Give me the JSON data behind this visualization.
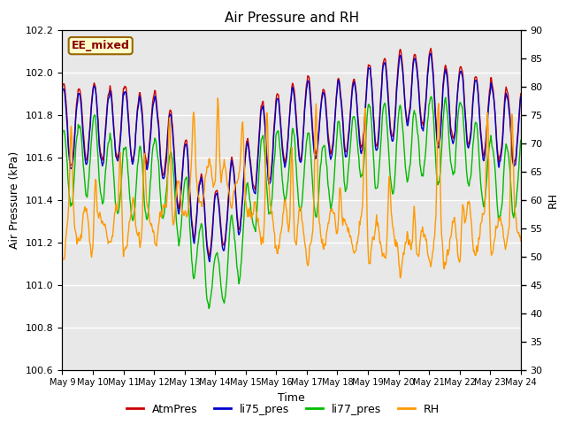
{
  "title": "Air Pressure and RH",
  "xlabel": "Time",
  "ylabel_left": "Air Pressure (kPa)",
  "ylabel_right": "RH",
  "annotation": "EE_mixed",
  "ylim_left": [
    100.6,
    102.2
  ],
  "ylim_right": [
    30,
    90
  ],
  "xtick_labels": [
    "May 9",
    "May 10",
    "May 11",
    "May 12",
    "May 13",
    "May 14",
    "May 15",
    "May 16",
    "May 17",
    "May 18",
    "May 19",
    "May 20",
    "May 21",
    "May 22",
    "May 23",
    "May 24"
  ],
  "n_points": 720,
  "colors": {
    "AtmPres": "#cc0000",
    "li75_pres": "#0000cc",
    "li77_pres": "#00bb00",
    "RH": "#ff9900"
  },
  "legend_labels": [
    "AtmPres",
    "li75_pres",
    "li77_pres",
    "RH"
  ],
  "background_color": "#e8e8e8",
  "grid_color": "#ffffff",
  "annotation_bg": "#ffffcc",
  "annotation_border": "#996600"
}
